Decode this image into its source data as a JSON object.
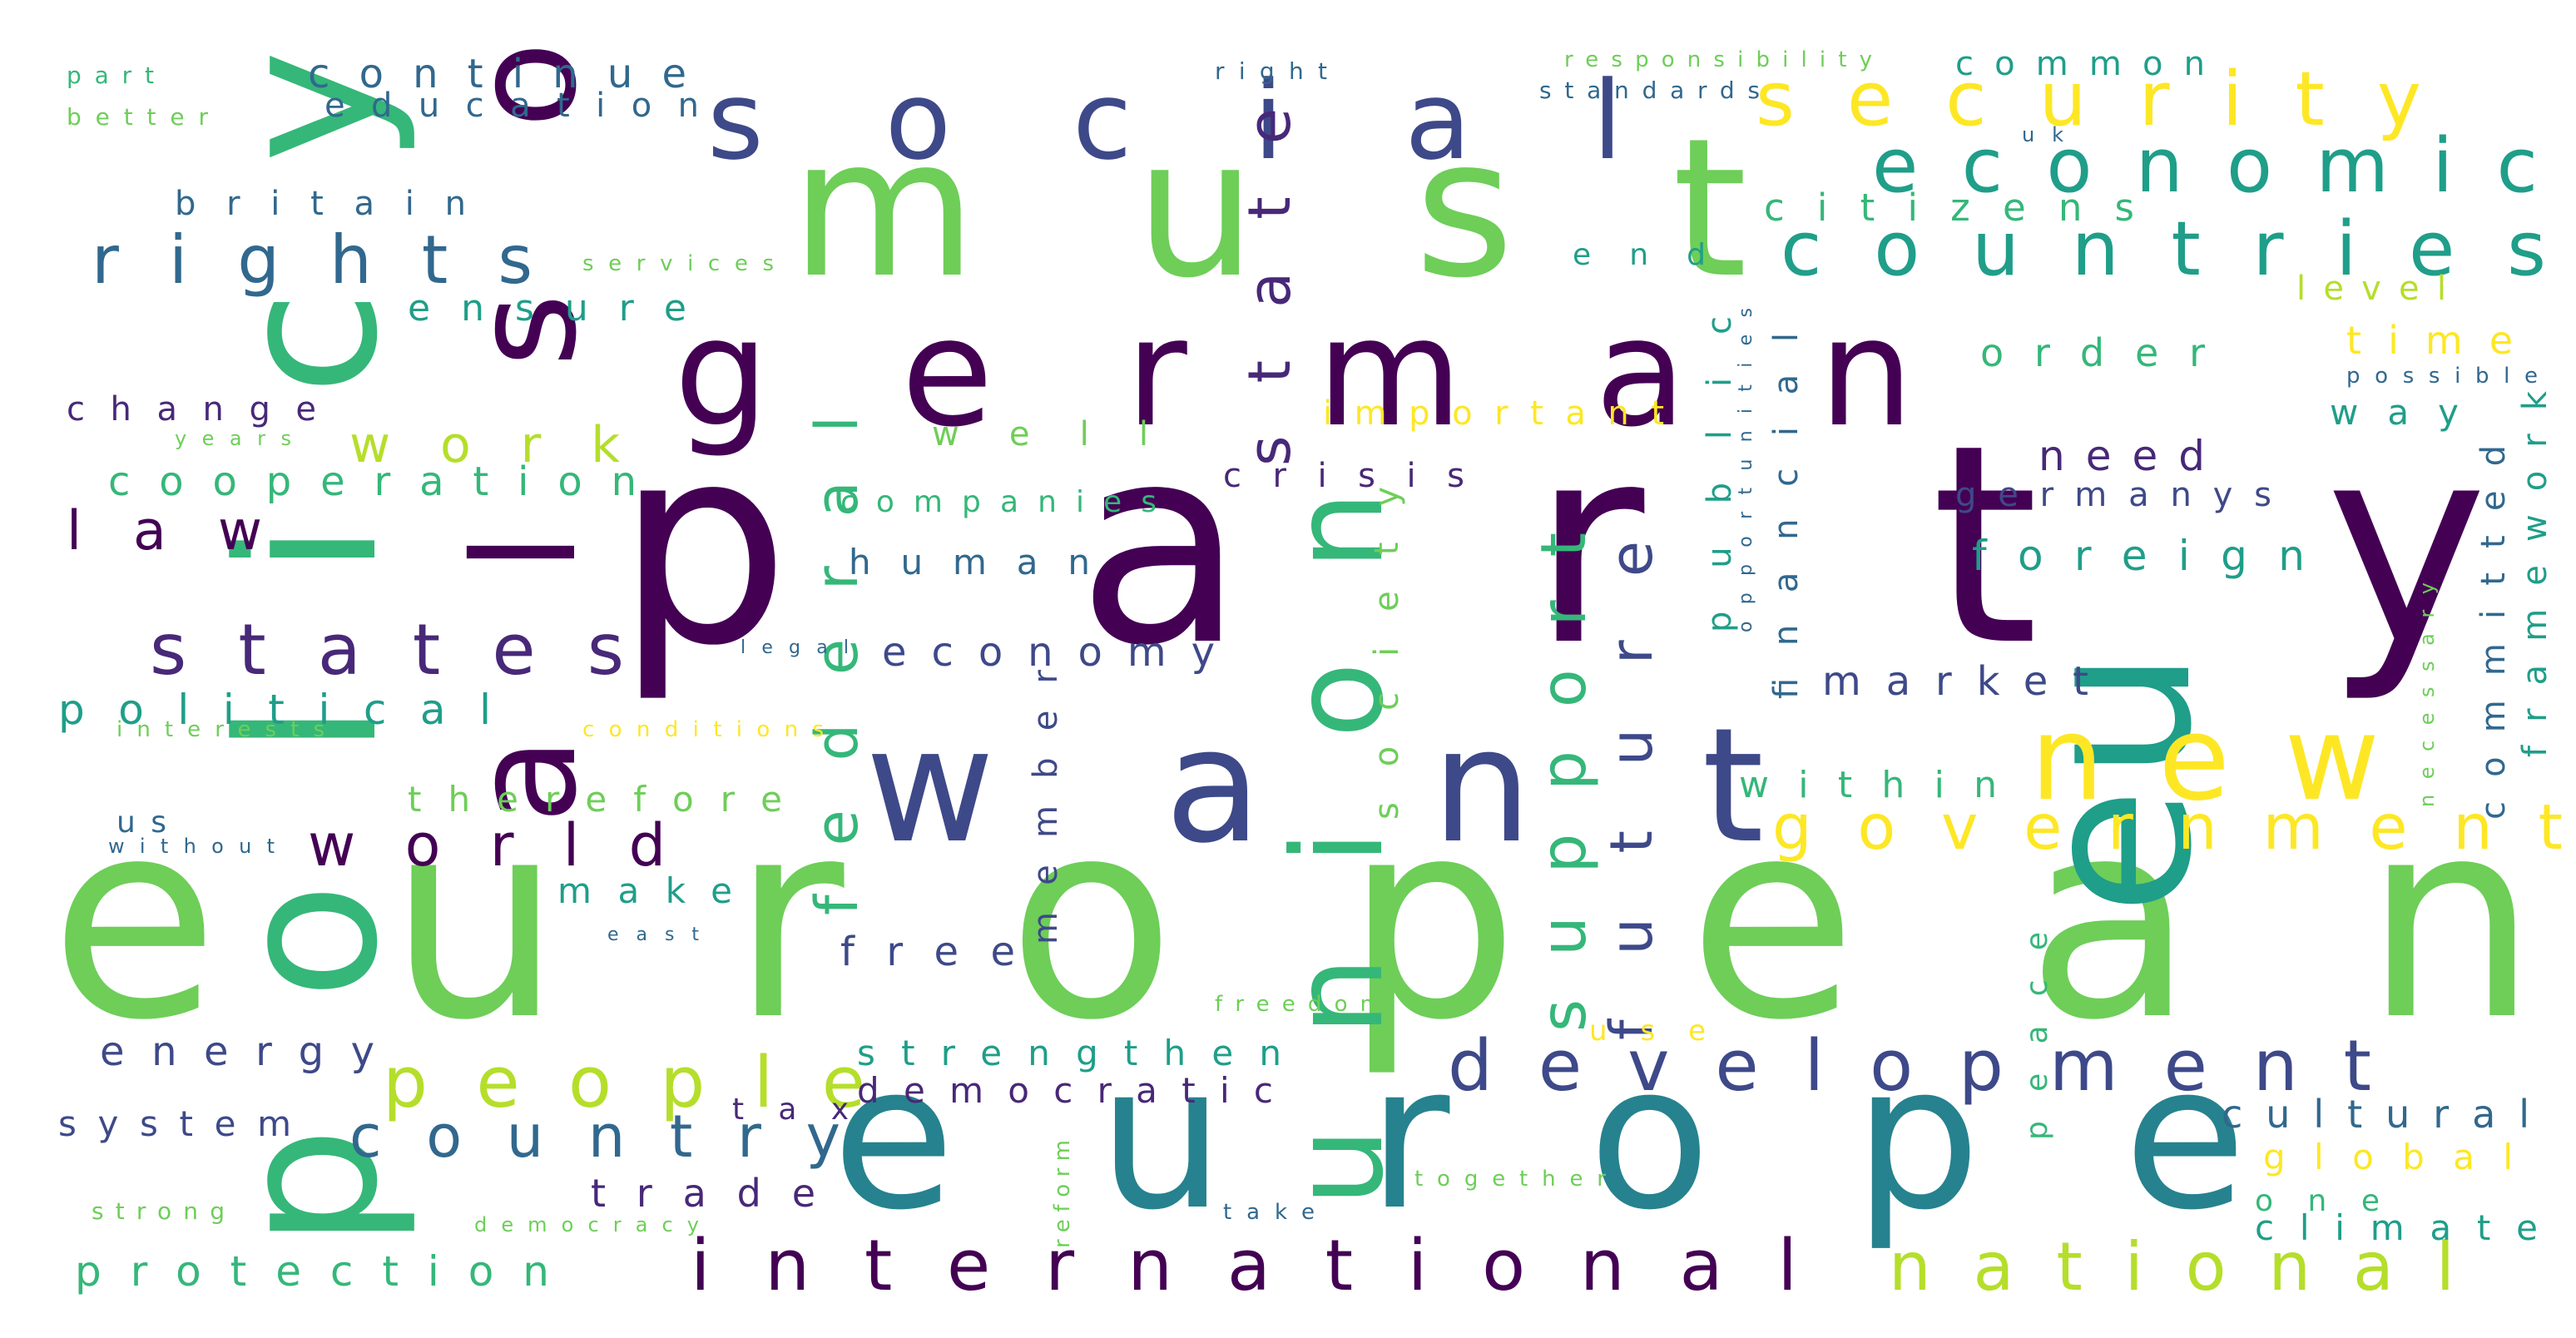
{
  "palette": {
    "d": "#440154",
    "p": "#482878",
    "i": "#3e4989",
    "b": "#31688e",
    "t": "#26828e",
    "g": "#1f9e89",
    "e": "#35b779",
    "l": "#6ece58",
    "y": "#b5de2b",
    "w": "#fde725"
  },
  "words": [
    {
      "t": "european",
      "c": "l"
    },
    {
      "t": "party",
      "c": "d"
    },
    {
      "t": "must",
      "c": "l"
    },
    {
      "t": "german",
      "c": "d"
    },
    {
      "t": "want",
      "c": "i"
    },
    {
      "t": "europe",
      "c": "t"
    },
    {
      "t": "policy",
      "c": "e"
    },
    {
      "t": "eu",
      "c": "g"
    },
    {
      "t": "also",
      "c": "d"
    },
    {
      "t": "social",
      "c": "i"
    },
    {
      "t": "union",
      "c": "e"
    },
    {
      "t": "new",
      "c": "w"
    },
    {
      "t": "security",
      "c": "w"
    },
    {
      "t": "economic",
      "c": "g"
    },
    {
      "t": "countries",
      "c": "g"
    },
    {
      "t": "rights",
      "c": "b"
    },
    {
      "t": "state",
      "c": "p"
    },
    {
      "t": "federal",
      "c": "e"
    },
    {
      "t": "development",
      "c": "i"
    },
    {
      "t": "international",
      "c": "d"
    },
    {
      "t": "government",
      "c": "w"
    },
    {
      "t": "national",
      "c": "y"
    },
    {
      "t": "people",
      "c": "y"
    },
    {
      "t": "country",
      "c": "b"
    },
    {
      "t": "states",
      "c": "p"
    },
    {
      "t": "support",
      "c": "e"
    },
    {
      "t": "future",
      "c": "i"
    },
    {
      "t": "world",
      "c": "d"
    },
    {
      "t": "work",
      "c": "y"
    },
    {
      "t": "law",
      "c": "d"
    },
    {
      "t": "continue",
      "c": "b"
    },
    {
      "t": "education",
      "c": "b"
    },
    {
      "t": "ensure",
      "c": "g"
    },
    {
      "t": "change",
      "c": "p"
    },
    {
      "t": "cooperation",
      "c": "e"
    },
    {
      "t": "political",
      "c": "g"
    },
    {
      "t": "citizens",
      "c": "e"
    },
    {
      "t": "common",
      "c": "g"
    },
    {
      "t": "britain",
      "c": "b"
    },
    {
      "t": "order",
      "c": "e"
    },
    {
      "t": "time",
      "c": "w"
    },
    {
      "t": "level",
      "c": "y"
    },
    {
      "t": "need",
      "c": "p"
    },
    {
      "t": "germanys",
      "c": "i"
    },
    {
      "t": "foreign",
      "c": "g"
    },
    {
      "t": "market",
      "c": "i"
    },
    {
      "t": "within",
      "c": "e"
    },
    {
      "t": "way",
      "c": "g"
    },
    {
      "t": "end",
      "c": "g"
    },
    {
      "t": "important",
      "c": "w"
    },
    {
      "t": "well",
      "c": "l"
    },
    {
      "t": "crisis",
      "c": "p"
    },
    {
      "t": "companies",
      "c": "e"
    },
    {
      "t": "human",
      "c": "b"
    },
    {
      "t": "economy",
      "c": "i"
    },
    {
      "t": "therefore",
      "c": "l"
    },
    {
      "t": "make",
      "c": "g"
    },
    {
      "t": "free",
      "c": "i"
    },
    {
      "t": "energy",
      "c": "i"
    },
    {
      "t": "strengthen",
      "c": "g"
    },
    {
      "t": "democratic",
      "c": "p"
    },
    {
      "t": "system",
      "c": "i"
    },
    {
      "t": "trade",
      "c": "p"
    },
    {
      "t": "tax",
      "c": "p"
    },
    {
      "t": "protection",
      "c": "e"
    },
    {
      "t": "cultural",
      "c": "b"
    },
    {
      "t": "global",
      "c": "w"
    },
    {
      "t": "one",
      "c": "e"
    },
    {
      "t": "climate",
      "c": "g"
    },
    {
      "t": "public",
      "c": "g"
    },
    {
      "t": "financial",
      "c": "b"
    },
    {
      "t": "committed",
      "c": "b"
    },
    {
      "t": "framework",
      "c": "g"
    },
    {
      "t": "member",
      "c": "i"
    },
    {
      "t": "society",
      "c": "l"
    },
    {
      "t": "peace",
      "c": "e"
    },
    {
      "t": "us",
      "c": "b"
    },
    {
      "t": "part",
      "c": "e"
    },
    {
      "t": "better",
      "c": "l"
    },
    {
      "t": "right",
      "c": "b"
    },
    {
      "t": "responsibility",
      "c": "l"
    },
    {
      "t": "standards",
      "c": "b"
    },
    {
      "t": "uk",
      "c": "b"
    },
    {
      "t": "services",
      "c": "l"
    },
    {
      "t": "years",
      "c": "l"
    },
    {
      "t": "legal",
      "c": "b"
    },
    {
      "t": "interests",
      "c": "l"
    },
    {
      "t": "conditions",
      "c": "w"
    },
    {
      "t": "without",
      "c": "b"
    },
    {
      "t": "east",
      "c": "b"
    },
    {
      "t": "freedom",
      "c": "l"
    },
    {
      "t": "use",
      "c": "w"
    },
    {
      "t": "together",
      "c": "l"
    },
    {
      "t": "take",
      "c": "b"
    },
    {
      "t": "strong",
      "c": "l"
    },
    {
      "t": "democracy",
      "c": "l"
    },
    {
      "t": "reform",
      "c": "l"
    },
    {
      "t": "opportunities",
      "c": "b"
    },
    {
      "t": "possible",
      "c": "b"
    },
    {
      "t": "necessary",
      "c": "l"
    }
  ]
}
